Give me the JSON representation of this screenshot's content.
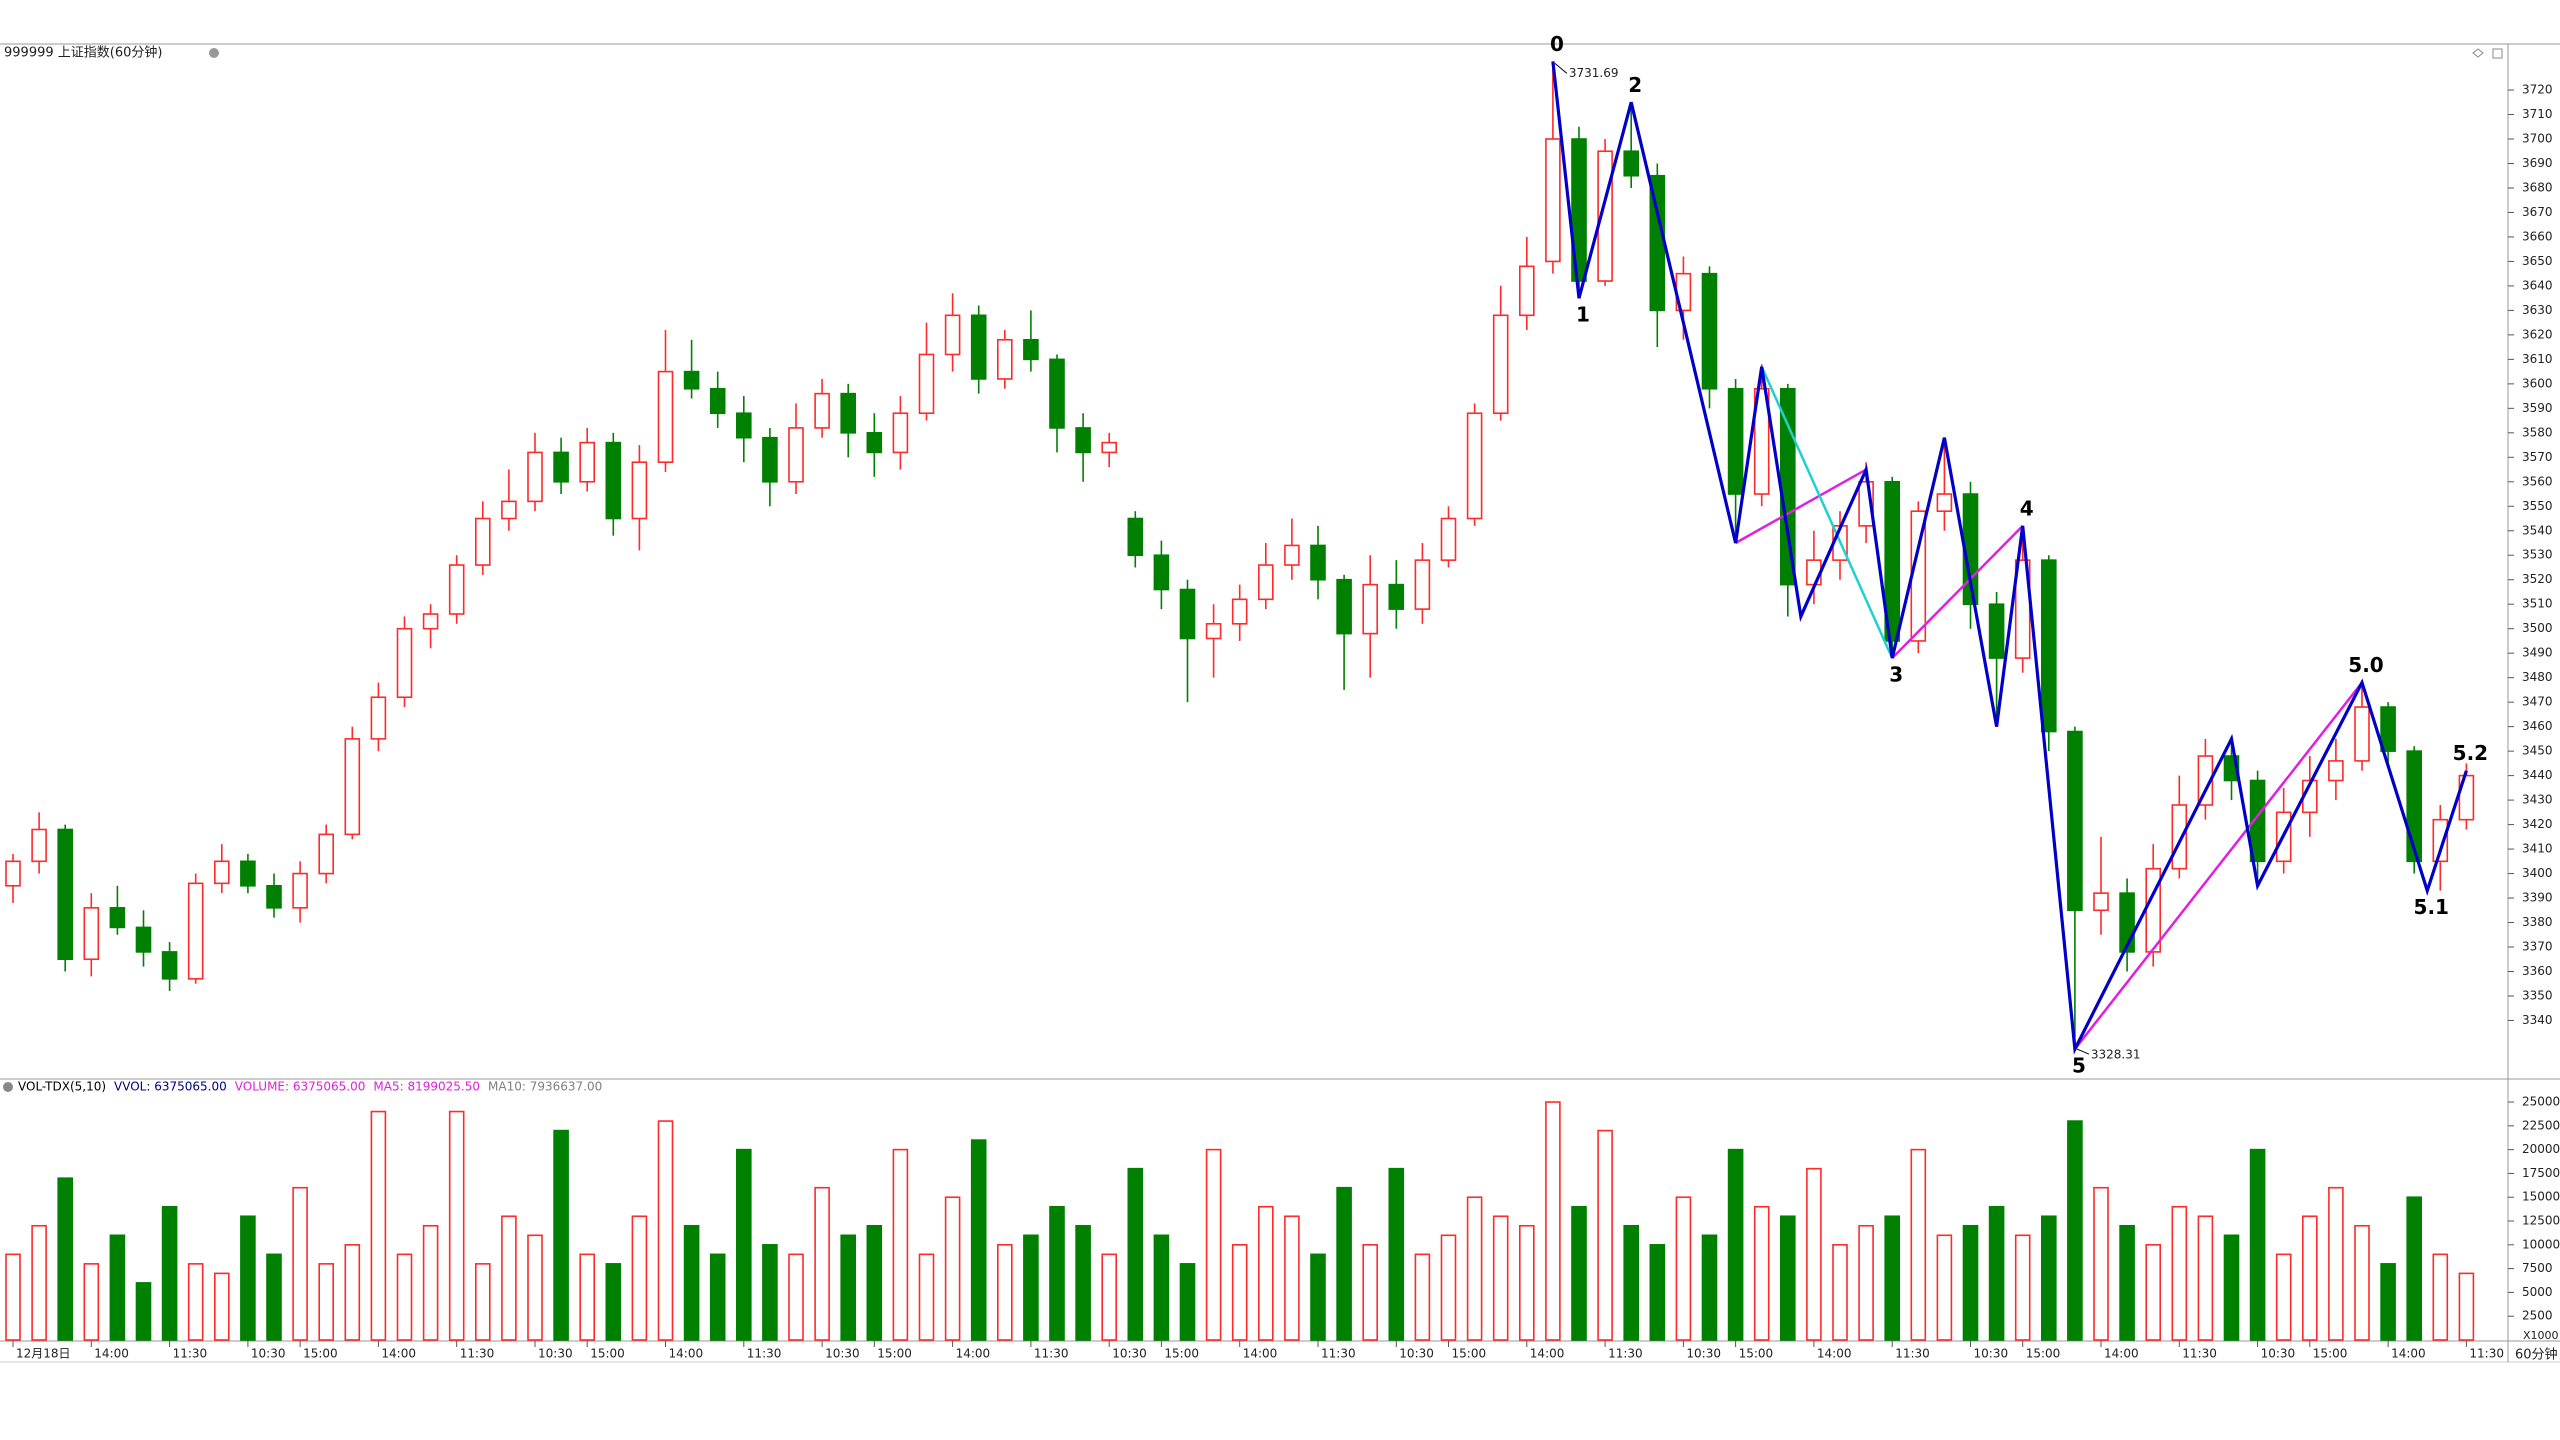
{
  "chart_data": {
    "type": "candlestick",
    "title": "999999 上证指数(60分钟)",
    "period_label": "60分钟",
    "volume_scale_label": "X1000",
    "up_color": "#ff2a2a",
    "down_color": "#008000",
    "ylim": [
      3316.5,
      3738.8
    ],
    "yticks": [
      3340,
      3350,
      3360,
      3370,
      3380,
      3390,
      3400,
      3410,
      3420,
      3430,
      3440,
      3450,
      3460,
      3470,
      3480,
      3490,
      3500,
      3510,
      3520,
      3530,
      3540,
      3550,
      3560,
      3570,
      3580,
      3590,
      3600,
      3610,
      3620,
      3630,
      3640,
      3650,
      3660,
      3670,
      3680,
      3690,
      3700,
      3710,
      3720
    ],
    "categories": [
      "12月18日",
      null,
      null,
      "14:00",
      null,
      null,
      "11:30",
      null,
      null,
      "10:30",
      null,
      "15:00",
      null,
      null,
      "14:00",
      null,
      null,
      "11:30",
      null,
      null,
      "10:30",
      null,
      "15:00",
      null,
      null,
      "14:00",
      null,
      null,
      "11:30",
      null,
      null,
      "10:30",
      null,
      "15:00",
      null,
      null,
      "14:00",
      null,
      null,
      "11:30",
      null,
      null,
      "10:30",
      null,
      "15:00",
      null,
      null,
      "14:00",
      null,
      null,
      "11:30",
      null,
      null,
      "10:30",
      null,
      "15:00",
      null,
      null,
      "14:00",
      null,
      null,
      "11:30",
      null,
      null,
      "10:30",
      null,
      "15:00",
      null,
      null,
      "14:00",
      null,
      null,
      "11:30",
      null,
      null,
      "10:30",
      null,
      "15:00",
      null,
      null,
      "14:00",
      null,
      null,
      "11:30",
      null,
      null,
      "10:30",
      null,
      "15:00",
      null,
      null,
      "14:00",
      null,
      null,
      "11:30"
    ],
    "ohlc": [
      [
        3395,
        3408,
        3388,
        3405
      ],
      [
        3405,
        3425,
        3400,
        3418
      ],
      [
        3418,
        3420,
        3360,
        3365
      ],
      [
        3365,
        3392,
        3358,
        3386
      ],
      [
        3386,
        3395,
        3375,
        3378
      ],
      [
        3378,
        3385,
        3362,
        3368
      ],
      [
        3368,
        3372,
        3352,
        3357
      ],
      [
        3357,
        3400,
        3355,
        3396
      ],
      [
        3396,
        3412,
        3392,
        3405
      ],
      [
        3405,
        3408,
        3392,
        3395
      ],
      [
        3395,
        3400,
        3382,
        3386
      ],
      [
        3386,
        3405,
        3380,
        3400
      ],
      [
        3400,
        3420,
        3396,
        3416
      ],
      [
        3416,
        3460,
        3414,
        3455
      ],
      [
        3455,
        3478,
        3450,
        3472
      ],
      [
        3472,
        3505,
        3468,
        3500
      ],
      [
        3500,
        3510,
        3492,
        3506
      ],
      [
        3506,
        3530,
        3502,
        3526
      ],
      [
        3526,
        3552,
        3522,
        3545
      ],
      [
        3545,
        3565,
        3540,
        3552
      ],
      [
        3552,
        3580,
        3548,
        3572
      ],
      [
        3572,
        3578,
        3555,
        3560
      ],
      [
        3560,
        3582,
        3556,
        3576
      ],
      [
        3576,
        3580,
        3538,
        3545
      ],
      [
        3545,
        3575,
        3532,
        3568
      ],
      [
        3568,
        3622,
        3564,
        3605
      ],
      [
        3605,
        3618,
        3594,
        3598
      ],
      [
        3598,
        3605,
        3582,
        3588
      ],
      [
        3588,
        3595,
        3568,
        3578
      ],
      [
        3578,
        3582,
        3550,
        3560
      ],
      [
        3560,
        3592,
        3555,
        3582
      ],
      [
        3582,
        3602,
        3578,
        3596
      ],
      [
        3596,
        3600,
        3570,
        3580
      ],
      [
        3580,
        3588,
        3562,
        3572
      ],
      [
        3572,
        3595,
        3565,
        3588
      ],
      [
        3588,
        3625,
        3585,
        3612
      ],
      [
        3612,
        3637,
        3605,
        3628
      ],
      [
        3628,
        3632,
        3596,
        3602
      ],
      [
        3602,
        3622,
        3598,
        3618
      ],
      [
        3618,
        3630,
        3605,
        3610
      ],
      [
        3610,
        3612,
        3572,
        3582
      ],
      [
        3582,
        3588,
        3560,
        3572
      ],
      [
        3572,
        3580,
        3566,
        3576
      ],
      [
        3545,
        3548,
        3525,
        3530
      ],
      [
        3530,
        3536,
        3508,
        3516
      ],
      [
        3516,
        3520,
        3470,
        3496
      ],
      [
        3496,
        3510,
        3480,
        3502
      ],
      [
        3502,
        3518,
        3495,
        3512
      ],
      [
        3512,
        3535,
        3508,
        3526
      ],
      [
        3526,
        3545,
        3520,
        3534
      ],
      [
        3534,
        3542,
        3512,
        3520
      ],
      [
        3520,
        3522,
        3475,
        3498
      ],
      [
        3498,
        3530,
        3480,
        3518
      ],
      [
        3518,
        3528,
        3500,
        3508
      ],
      [
        3508,
        3535,
        3502,
        3528
      ],
      [
        3528,
        3550,
        3525,
        3545
      ],
      [
        3545,
        3592,
        3542,
        3588
      ],
      [
        3588,
        3640,
        3585,
        3628
      ],
      [
        3628,
        3660,
        3622,
        3648
      ],
      [
        3650,
        3731.69,
        3645,
        3700
      ],
      [
        3700,
        3705,
        3635,
        3642
      ],
      [
        3642,
        3700,
        3640,
        3695
      ],
      [
        3695,
        3715,
        3680,
        3685
      ],
      [
        3685,
        3690,
        3615,
        3630
      ],
      [
        3630,
        3652,
        3618,
        3645
      ],
      [
        3645,
        3648,
        3590,
        3598
      ],
      [
        3598,
        3602,
        3535,
        3555
      ],
      [
        3555,
        3608,
        3550,
        3598
      ],
      [
        3598,
        3600,
        3505,
        3518
      ],
      [
        3518,
        3540,
        3510,
        3528
      ],
      [
        3528,
        3548,
        3520,
        3542
      ],
      [
        3542,
        3568,
        3535,
        3560
      ],
      [
        3560,
        3562,
        3488,
        3495
      ],
      [
        3495,
        3552,
        3490,
        3548
      ],
      [
        3548,
        3578,
        3540,
        3555
      ],
      [
        3555,
        3560,
        3500,
        3510
      ],
      [
        3510,
        3515,
        3460,
        3488
      ],
      [
        3488,
        3542,
        3482,
        3528
      ],
      [
        3528,
        3530,
        3450,
        3458
      ],
      [
        3458,
        3460,
        3328.31,
        3385
      ],
      [
        3385,
        3415,
        3375,
        3392
      ],
      [
        3392,
        3398,
        3360,
        3368
      ],
      [
        3368,
        3412,
        3362,
        3402
      ],
      [
        3402,
        3440,
        3398,
        3428
      ],
      [
        3428,
        3455,
        3422,
        3448
      ],
      [
        3448,
        3456,
        3430,
        3438
      ],
      [
        3438,
        3442,
        3395,
        3405
      ],
      [
        3405,
        3435,
        3400,
        3425
      ],
      [
        3425,
        3448,
        3415,
        3438
      ],
      [
        3438,
        3455,
        3430,
        3446
      ],
      [
        3446,
        3478,
        3442,
        3468
      ],
      [
        3468,
        3470,
        3445,
        3450
      ],
      [
        3450,
        3452,
        3400,
        3405
      ],
      [
        3405,
        3428,
        3393,
        3422
      ],
      [
        3422,
        3445,
        3418,
        3440
      ]
    ],
    "volume": {
      "ylim": [
        0,
        27000
      ],
      "yticks": [
        2500,
        5000,
        7500,
        10000,
        12500,
        15000,
        17500,
        20000,
        22500,
        25000
      ],
      "header": [
        {
          "text": "VOL-TDX(5,10)",
          "color": "#000000"
        },
        {
          "text": "VVOL: 6375065.00",
          "color": "#000080"
        },
        {
          "text": "VOLUME: 6375065.00",
          "color": "#e020e0"
        },
        {
          "text": "MA5: 8199025.50",
          "color": "#e020e0"
        },
        {
          "text": "MA10: 7936637.00",
          "color": "#808080"
        }
      ],
      "values": [
        9000,
        12000,
        17000,
        8000,
        11000,
        6000,
        14000,
        8000,
        7000,
        13000,
        9000,
        16000,
        8000,
        10000,
        24000,
        9000,
        12000,
        24000,
        8000,
        13000,
        11000,
        22000,
        9000,
        8000,
        13000,
        23000,
        12000,
        9000,
        20000,
        10000,
        9000,
        16000,
        11000,
        12000,
        20000,
        9000,
        15000,
        21000,
        10000,
        11000,
        14000,
        12000,
        9000,
        18000,
        11000,
        8000,
        20000,
        10000,
        14000,
        13000,
        9000,
        16000,
        10000,
        18000,
        9000,
        11000,
        15000,
        13000,
        12000,
        25000,
        14000,
        22000,
        12000,
        10000,
        15000,
        11000,
        20000,
        14000,
        13000,
        18000,
        10000,
        12000,
        13000,
        20000,
        11000,
        12000,
        14000,
        11000,
        13000,
        23000,
        16000,
        12000,
        10000,
        14000,
        13000,
        11000,
        20000,
        9000,
        13000,
        16000,
        12000,
        8000,
        15000,
        9000,
        7000
      ]
    },
    "waves": {
      "color": "#0000c8",
      "points": [
        {
          "x": 59,
          "y": 3731.69,
          "label": "0"
        },
        {
          "x": 60,
          "y": 3635,
          "label": "1"
        },
        {
          "x": 62,
          "y": 3715,
          "label": "2"
        },
        {
          "x": 66,
          "y": 3535
        },
        {
          "x": 67,
          "y": 3607
        },
        {
          "x": 68.5,
          "y": 3505
        },
        {
          "x": 71,
          "y": 3565
        },
        {
          "x": 72,
          "y": 3488,
          "label": "3"
        },
        {
          "x": 74,
          "y": 3578
        },
        {
          "x": 76,
          "y": 3460
        },
        {
          "x": 77,
          "y": 3542,
          "label": "4"
        },
        {
          "x": 79,
          "y": 3328.31,
          "label": "5"
        },
        {
          "x": 85,
          "y": 3455
        },
        {
          "x": 86,
          "y": 3395
        },
        {
          "x": 90,
          "y": 3478,
          "label": "5.0"
        },
        {
          "x": 92.5,
          "y": 3393,
          "label": "5.1"
        },
        {
          "x": 94,
          "y": 3442,
          "label": "5.2"
        }
      ]
    },
    "overlays": [
      {
        "color": "#e020e0",
        "points": [
          [
            66,
            3535
          ],
          [
            71,
            3565
          ]
        ]
      },
      {
        "color": "#e020e0",
        "points": [
          [
            72,
            3488
          ],
          [
            77,
            3542
          ]
        ]
      },
      {
        "color": "#e020e0",
        "points": [
          [
            79,
            3328.31
          ],
          [
            90,
            3478
          ]
        ]
      },
      {
        "color": "#20d0d0",
        "points": [
          [
            67,
            3607
          ],
          [
            72,
            3488
          ]
        ]
      }
    ]
  }
}
